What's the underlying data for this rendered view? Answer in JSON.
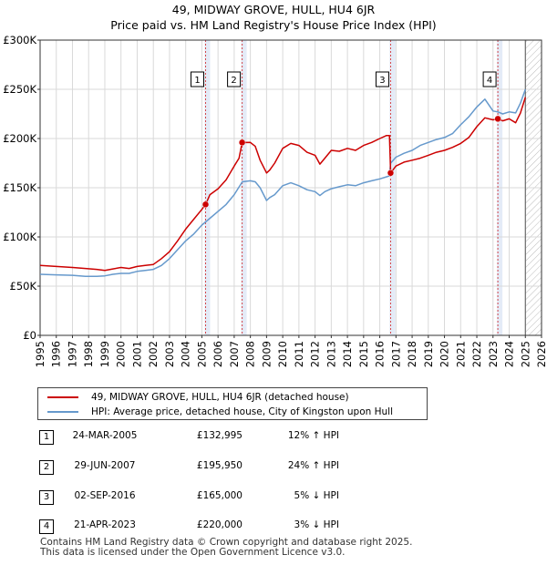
{
  "title_line1": "49, MIDWAY GROVE, HULL, HU4 6JR",
  "title_line2": "Price paid vs. HM Land Registry's House Price Index (HPI)",
  "colors": {
    "property": "#cc0000",
    "hpi": "#6699cc",
    "sale_band": "#dde6f5",
    "future_hatch": "#bbbbbb",
    "vline": "#cc0000",
    "grid": "#d9d9d9"
  },
  "legend": {
    "property_label": "49, MIDWAY GROVE, HULL, HU4 6JR (detached house)",
    "hpi_label": "HPI: Average price, detached house, City of Kingston upon Hull"
  },
  "sales": [
    {
      "num": "1",
      "date": "24-MAR-2005",
      "price": "£132,995",
      "hpi_rel": "12% ↑ HPI",
      "t": 2005.23,
      "value": 132995
    },
    {
      "num": "2",
      "date": "29-JUN-2007",
      "price": "£195,950",
      "hpi_rel": "24% ↑ HPI",
      "t": 2007.49,
      "value": 195950
    },
    {
      "num": "3",
      "date": "02-SEP-2016",
      "price": "£165,000",
      "hpi_rel": "5% ↓ HPI",
      "t": 2016.67,
      "value": 165000
    },
    {
      "num": "4",
      "date": "21-APR-2023",
      "price": "£220,000",
      "hpi_rel": "3% ↓ HPI",
      "t": 2023.3,
      "value": 220000
    }
  ],
  "footer": {
    "line1": "Contains HM Land Registry data © Crown copyright and database right 2025.",
    "line2": "This data is licensed under the Open Government Licence v3.0."
  },
  "chart_data": {
    "type": "line",
    "title": "49, MIDWAY GROVE, HULL, HU4 6JR",
    "subtitle": "Price paid vs. HM Land Registry's House Price Index (HPI)",
    "xlabel": "",
    "ylabel": "",
    "xlim": [
      1995,
      2026
    ],
    "ylim": [
      0,
      300000
    ],
    "x_ticks": [
      1995,
      1996,
      1997,
      1998,
      1999,
      2000,
      2001,
      2002,
      2003,
      2004,
      2005,
      2006,
      2007,
      2008,
      2009,
      2010,
      2011,
      2012,
      2013,
      2014,
      2015,
      2016,
      2017,
      2018,
      2019,
      2020,
      2021,
      2022,
      2023,
      2024,
      2025,
      2026
    ],
    "y_ticks": [
      0,
      50000,
      100000,
      150000,
      200000,
      250000,
      300000
    ],
    "y_tick_labels": [
      "£0",
      "£50K",
      "£100K",
      "£150K",
      "£200K",
      "£250K",
      "£300K"
    ],
    "grid": true,
    "future_from": 2025.0,
    "series": [
      {
        "name": "49, MIDWAY GROVE, HULL, HU4 6JR (detached house)",
        "x": [
          1995,
          1996,
          1997,
          1997.8,
          1998.5,
          1999,
          1999.5,
          2000,
          2000.5,
          2001,
          2001.5,
          2002,
          2002.5,
          2003,
          2003.5,
          2004,
          2004.5,
          2005,
          2005.23,
          2005.5,
          2006,
          2006.5,
          2007,
          2007.3,
          2007.49,
          2008,
          2008.3,
          2008.6,
          2009,
          2009.2,
          2009.5,
          2010,
          2010.5,
          2011,
          2011.5,
          2012,
          2012.3,
          2012.6,
          2013,
          2013.5,
          2014,
          2014.5,
          2015,
          2015.5,
          2016,
          2016.4,
          2016.6,
          2016.67,
          2017,
          2017.5,
          2018,
          2018.5,
          2019,
          2019.5,
          2020,
          2020.5,
          2021,
          2021.5,
          2022,
          2022.5,
          2023,
          2023.3,
          2023.6,
          2024,
          2024.4,
          2024.7,
          2025
        ],
        "values": [
          71000,
          70000,
          69000,
          68000,
          67000,
          66000,
          67500,
          69000,
          68000,
          70000,
          71000,
          72000,
          78000,
          85000,
          96000,
          108000,
          118000,
          128000,
          132995,
          143000,
          149000,
          158000,
          172000,
          180000,
          195950,
          196000,
          192000,
          178000,
          165000,
          168000,
          175000,
          190000,
          195000,
          193000,
          186000,
          183000,
          174000,
          180000,
          188000,
          187000,
          190000,
          188000,
          193000,
          196000,
          200000,
          203000,
          203000,
          165000,
          172000,
          176000,
          178000,
          180000,
          183000,
          186000,
          188000,
          191000,
          195000,
          201000,
          212000,
          221000,
          219000,
          220000,
          218000,
          220000,
          216000,
          226000,
          242000
        ]
      },
      {
        "name": "HPI: Average price, detached house, City of Kingston upon Hull",
        "x": [
          1995,
          1996,
          1997,
          1997.8,
          1998.5,
          1999,
          1999.5,
          2000,
          2000.5,
          2001,
          2001.5,
          2002,
          2002.5,
          2003,
          2003.5,
          2004,
          2004.5,
          2005,
          2005.5,
          2006,
          2006.5,
          2007,
          2007.5,
          2008,
          2008.3,
          2008.6,
          2009,
          2009.2,
          2009.5,
          2010,
          2010.5,
          2011,
          2011.5,
          2012,
          2012.3,
          2012.6,
          2013,
          2013.5,
          2014,
          2014.5,
          2015,
          2015.5,
          2016,
          2016.4,
          2016.6,
          2016.67,
          2017,
          2017.5,
          2018,
          2018.5,
          2019,
          2019.5,
          2020,
          2020.5,
          2021,
          2021.5,
          2022,
          2022.5,
          2023,
          2023.3,
          2023.6,
          2024,
          2024.4,
          2024.7,
          2025
        ],
        "values": [
          62000,
          61500,
          61000,
          60000,
          60000,
          60500,
          62000,
          63000,
          63000,
          65000,
          66000,
          67000,
          71000,
          78000,
          87000,
          96000,
          103000,
          112000,
          119000,
          126000,
          133000,
          143000,
          156000,
          157000,
          156000,
          150000,
          137000,
          140000,
          143000,
          152000,
          155000,
          152000,
          148000,
          146000,
          142000,
          146000,
          149000,
          151000,
          153000,
          152000,
          155000,
          157000,
          159000,
          161000,
          162000,
          175000,
          181000,
          185000,
          188000,
          193000,
          196000,
          199000,
          201000,
          205000,
          214000,
          222000,
          232000,
          240000,
          228000,
          227000,
          225000,
          227000,
          226000,
          236000,
          250000
        ]
      }
    ]
  }
}
